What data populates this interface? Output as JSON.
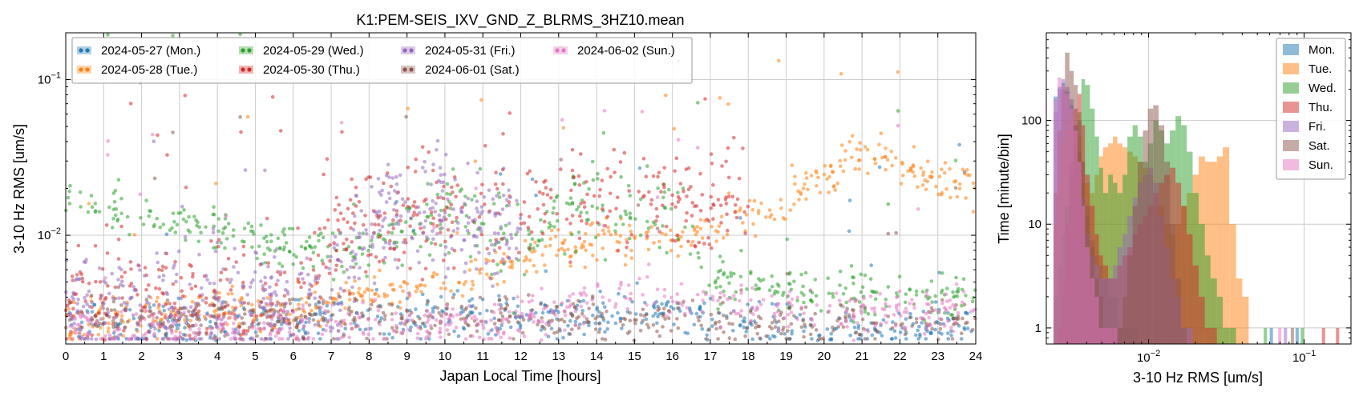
{
  "chart_data": [
    {
      "type": "scatter",
      "title": "K1:PEM-SEIS_IXV_GND_Z_BLRMS_3HZ10.mean",
      "xlabel": "Japan Local Time [hours]",
      "ylabel": "3-10 Hz RMS [um/s]",
      "xlim": [
        0,
        24
      ],
      "ylim": [
        0.002,
        0.2
      ],
      "yscale": "log",
      "grid": true,
      "legend_position": "top-left",
      "x_tick_labels": [
        "0",
        "1",
        "2",
        "3",
        "4",
        "5",
        "6",
        "7",
        "8",
        "9",
        "10",
        "11",
        "12",
        "13",
        "14",
        "15",
        "16",
        "17",
        "18",
        "19",
        "20",
        "21",
        "22",
        "23",
        "24"
      ],
      "y_tick_labels": [
        {
          "value": 0.01,
          "base": "10",
          "exp": "−2"
        },
        {
          "value": 0.1,
          "base": "10",
          "exp": "−1"
        }
      ],
      "series": [
        {
          "name": "2024-05-27 (Mon.)",
          "color": "#1f77b4",
          "x": [
            0,
            1,
            2,
            3,
            4,
            5,
            6,
            7,
            8,
            9,
            10,
            11,
            12,
            13,
            14,
            15,
            16,
            17,
            18,
            19,
            20,
            21,
            22,
            23,
            24
          ],
          "y": [
            0.0028,
            0.0026,
            0.0025,
            0.0026,
            0.0027,
            0.0027,
            0.0028,
            0.0029,
            0.003,
            0.003,
            0.0031,
            0.0031,
            0.003,
            0.0029,
            0.0031,
            0.0032,
            0.003,
            0.0028,
            0.0027,
            0.0026,
            0.0026,
            0.0025,
            0.0026,
            0.0025,
            0.0025
          ]
        },
        {
          "name": "2024-05-28 (Tue.)",
          "color": "#ff7f0e",
          "x": [
            0,
            1,
            2,
            3,
            4,
            5,
            6,
            7,
            8,
            9,
            10,
            11,
            12,
            13,
            14,
            15,
            16,
            17,
            18,
            19,
            20,
            21,
            22,
            23,
            24
          ],
          "y": [
            0.0025,
            0.0028,
            0.003,
            0.0032,
            0.0033,
            0.0034,
            0.0035,
            0.0037,
            0.004,
            0.0045,
            0.005,
            0.0055,
            0.0065,
            0.0085,
            0.0095,
            0.0095,
            0.0095,
            0.011,
            0.013,
            0.018,
            0.025,
            0.035,
            0.031,
            0.023,
            0.018
          ]
        },
        {
          "name": "2024-05-29 (Wed.)",
          "color": "#2ca02c",
          "x": [
            0,
            1,
            2,
            3,
            4,
            5,
            6,
            7,
            8,
            9,
            10,
            11,
            12,
            13,
            14,
            15,
            16,
            17,
            18,
            19,
            20,
            21,
            22,
            23,
            24
          ],
          "y": [
            0.017,
            0.015,
            0.013,
            0.012,
            0.011,
            0.0095,
            0.0085,
            0.0078,
            0.0075,
            0.012,
            0.014,
            0.014,
            0.0065,
            0.016,
            0.016,
            0.016,
            0.015,
            0.0052,
            0.0048,
            0.0045,
            0.0043,
            0.0042,
            0.0041,
            0.004,
            0.0041
          ]
        },
        {
          "name": "2024-05-30 (Thu.)",
          "color": "#d62728",
          "x": [
            0,
            1,
            2,
            3,
            4,
            5,
            6,
            7,
            8,
            9,
            10,
            11,
            12,
            13,
            14,
            15,
            16,
            17,
            18
          ],
          "y": [
            0.0041,
            0.004,
            0.004,
            0.004,
            0.0039,
            0.0039,
            0.004,
            0.011,
            0.012,
            0.013,
            0.014,
            0.015,
            0.014,
            0.016,
            0.017,
            0.016,
            0.016,
            0.017,
            0.016
          ]
        },
        {
          "name": "2024-05-31 (Fri.)",
          "color": "#9467bd",
          "x": [
            0,
            1,
            2,
            3,
            4,
            5,
            6,
            7,
            8,
            9,
            10,
            11,
            12
          ],
          "y": [
            0.0033,
            0.0034,
            0.0035,
            0.0035,
            0.0036,
            0.0036,
            0.0037,
            0.0038,
            0.013,
            0.014,
            0.013,
            0.012,
            0.012
          ]
        },
        {
          "name": "2024-06-01 (Sat.)",
          "color": "#8c564b",
          "x": [
            0,
            1,
            2,
            3,
            4,
            5,
            6,
            7,
            8,
            9,
            10,
            11,
            12,
            13,
            14,
            15,
            16,
            17,
            18,
            19,
            20,
            21,
            22,
            23,
            24
          ],
          "y": [
            0.003,
            0.0029,
            0.0029,
            0.0029,
            0.0029,
            0.003,
            0.003,
            0.003,
            0.003,
            0.003,
            0.003,
            0.003,
            0.003,
            0.003,
            0.0031,
            0.003,
            0.0029,
            0.0028,
            0.0027,
            0.0027,
            0.0026,
            0.0026,
            0.0027,
            0.0027,
            0.0027
          ]
        },
        {
          "name": "2024-06-02 (Sun.)",
          "color": "#e377c2",
          "x": [
            0,
            1,
            2,
            3,
            4,
            5,
            6,
            7,
            8,
            9,
            10,
            11,
            12,
            13,
            14,
            15,
            16,
            17,
            18,
            19,
            20,
            21,
            22,
            23,
            24
          ],
          "y": [
            0.0027,
            0.0025,
            0.0025,
            0.0026,
            0.0026,
            0.0026,
            0.0026,
            0.0027,
            0.0027,
            0.0028,
            0.0027,
            0.0027,
            0.0028,
            0.0033,
            0.004,
            0.0043,
            0.004,
            0.0037,
            0.0035,
            0.0034,
            0.0033,
            0.0032,
            0.0033,
            0.0033,
            0.0034
          ]
        }
      ]
    },
    {
      "type": "bar",
      "subtype": "histogram",
      "xlabel": "3-10 Hz RMS [um/s]",
      "ylabel": "Time [minute/bin]",
      "xscale": "log",
      "yscale": "log",
      "xlim": [
        0.0022,
        0.2
      ],
      "ylim": [
        0.7,
        700
      ],
      "grid": true,
      "legend_position": "top-right",
      "x_tick_labels": [
        {
          "value": 0.01,
          "base": "10",
          "exp": "−2"
        },
        {
          "value": 0.1,
          "base": "10",
          "exp": "−1"
        }
      ],
      "y_tick_labels": [
        {
          "value": 1,
          "label": "1"
        },
        {
          "value": 10,
          "label": "10"
        },
        {
          "value": 100,
          "label": "100"
        }
      ],
      "bin_edges": [
        0.00245,
        0.0026,
        0.00275,
        0.0029,
        0.0031,
        0.0033,
        0.0035,
        0.0037,
        0.0039,
        0.0042,
        0.0045,
        0.0048,
        0.0051,
        0.0055,
        0.0059,
        0.0063,
        0.0068,
        0.0073,
        0.0079,
        0.0085,
        0.0092,
        0.0099,
        0.0107,
        0.0116,
        0.0126,
        0.0137,
        0.0149,
        0.0162,
        0.0176,
        0.0192,
        0.021,
        0.023,
        0.025,
        0.0275,
        0.03,
        0.033,
        0.0365,
        0.04,
        0.044
      ],
      "series": [
        {
          "name": "Mon.",
          "color": "#1f77b4",
          "values": [
            170,
            210,
            230,
            190,
            140,
            90,
            50,
            25,
            12,
            7,
            5,
            4,
            3,
            2,
            2,
            1,
            1,
            1,
            1,
            0,
            0,
            0,
            0,
            0,
            0,
            0,
            0,
            0,
            0,
            0,
            0,
            0,
            0,
            0,
            0,
            0,
            0,
            0
          ]
        },
        {
          "name": "Tue.",
          "color": "#ff7f0e",
          "values": [
            10,
            25,
            60,
            80,
            100,
            90,
            70,
            40,
            25,
            20,
            30,
            45,
            55,
            60,
            70,
            60,
            55,
            50,
            45,
            40,
            35,
            30,
            15,
            15,
            10,
            8,
            10,
            15,
            20,
            30,
            45,
            40,
            40,
            45,
            55,
            10,
            3,
            2
          ]
        },
        {
          "name": "Wed.",
          "color": "#2ca02c",
          "values": [
            2,
            4,
            8,
            15,
            30,
            60,
            120,
            250,
            220,
            130,
            70,
            35,
            20,
            30,
            25,
            20,
            30,
            70,
            90,
            70,
            40,
            60,
            100,
            80,
            60,
            80,
            110,
            90,
            50,
            20,
            10,
            5,
            3,
            2,
            1,
            1,
            0,
            0
          ]
        },
        {
          "name": "Thu.",
          "color": "#d62728",
          "values": [
            0,
            1,
            3,
            10,
            40,
            130,
            180,
            90,
            30,
            15,
            8,
            5,
            4,
            3,
            3,
            4,
            5,
            6,
            8,
            10,
            12,
            15,
            20,
            25,
            30,
            35,
            25,
            15,
            8,
            4,
            2,
            1,
            1,
            0,
            0,
            0,
            0,
            0
          ]
        },
        {
          "name": "Fri.",
          "color": "#9467bd",
          "values": [
            120,
            200,
            250,
            210,
            160,
            90,
            40,
            18,
            8,
            5,
            4,
            3,
            3,
            3,
            4,
            6,
            8,
            12,
            18,
            25,
            30,
            35,
            25,
            12,
            6,
            3,
            2,
            1,
            1,
            0,
            0,
            0,
            0,
            0,
            0,
            0,
            0,
            0
          ]
        },
        {
          "name": "Sat.",
          "color": "#8c564b",
          "values": [
            20,
            80,
            200,
            450,
            300,
            220,
            100,
            40,
            15,
            6,
            3,
            2,
            1,
            1,
            1,
            1,
            2,
            5,
            15,
            40,
            80,
            130,
            140,
            90,
            40,
            10,
            3,
            1,
            0,
            0,
            0,
            0,
            0,
            0,
            0,
            0,
            0,
            0
          ]
        },
        {
          "name": "Sun.",
          "color": "#e377c2",
          "values": [
            160,
            260,
            220,
            180,
            130,
            80,
            40,
            15,
            6,
            3,
            2,
            1,
            1,
            1,
            1,
            0,
            0,
            0,
            0,
            0,
            0,
            0,
            0,
            0,
            0,
            0,
            0,
            0,
            0,
            0,
            0,
            0,
            0,
            0,
            0,
            0,
            0,
            0
          ]
        }
      ]
    }
  ]
}
